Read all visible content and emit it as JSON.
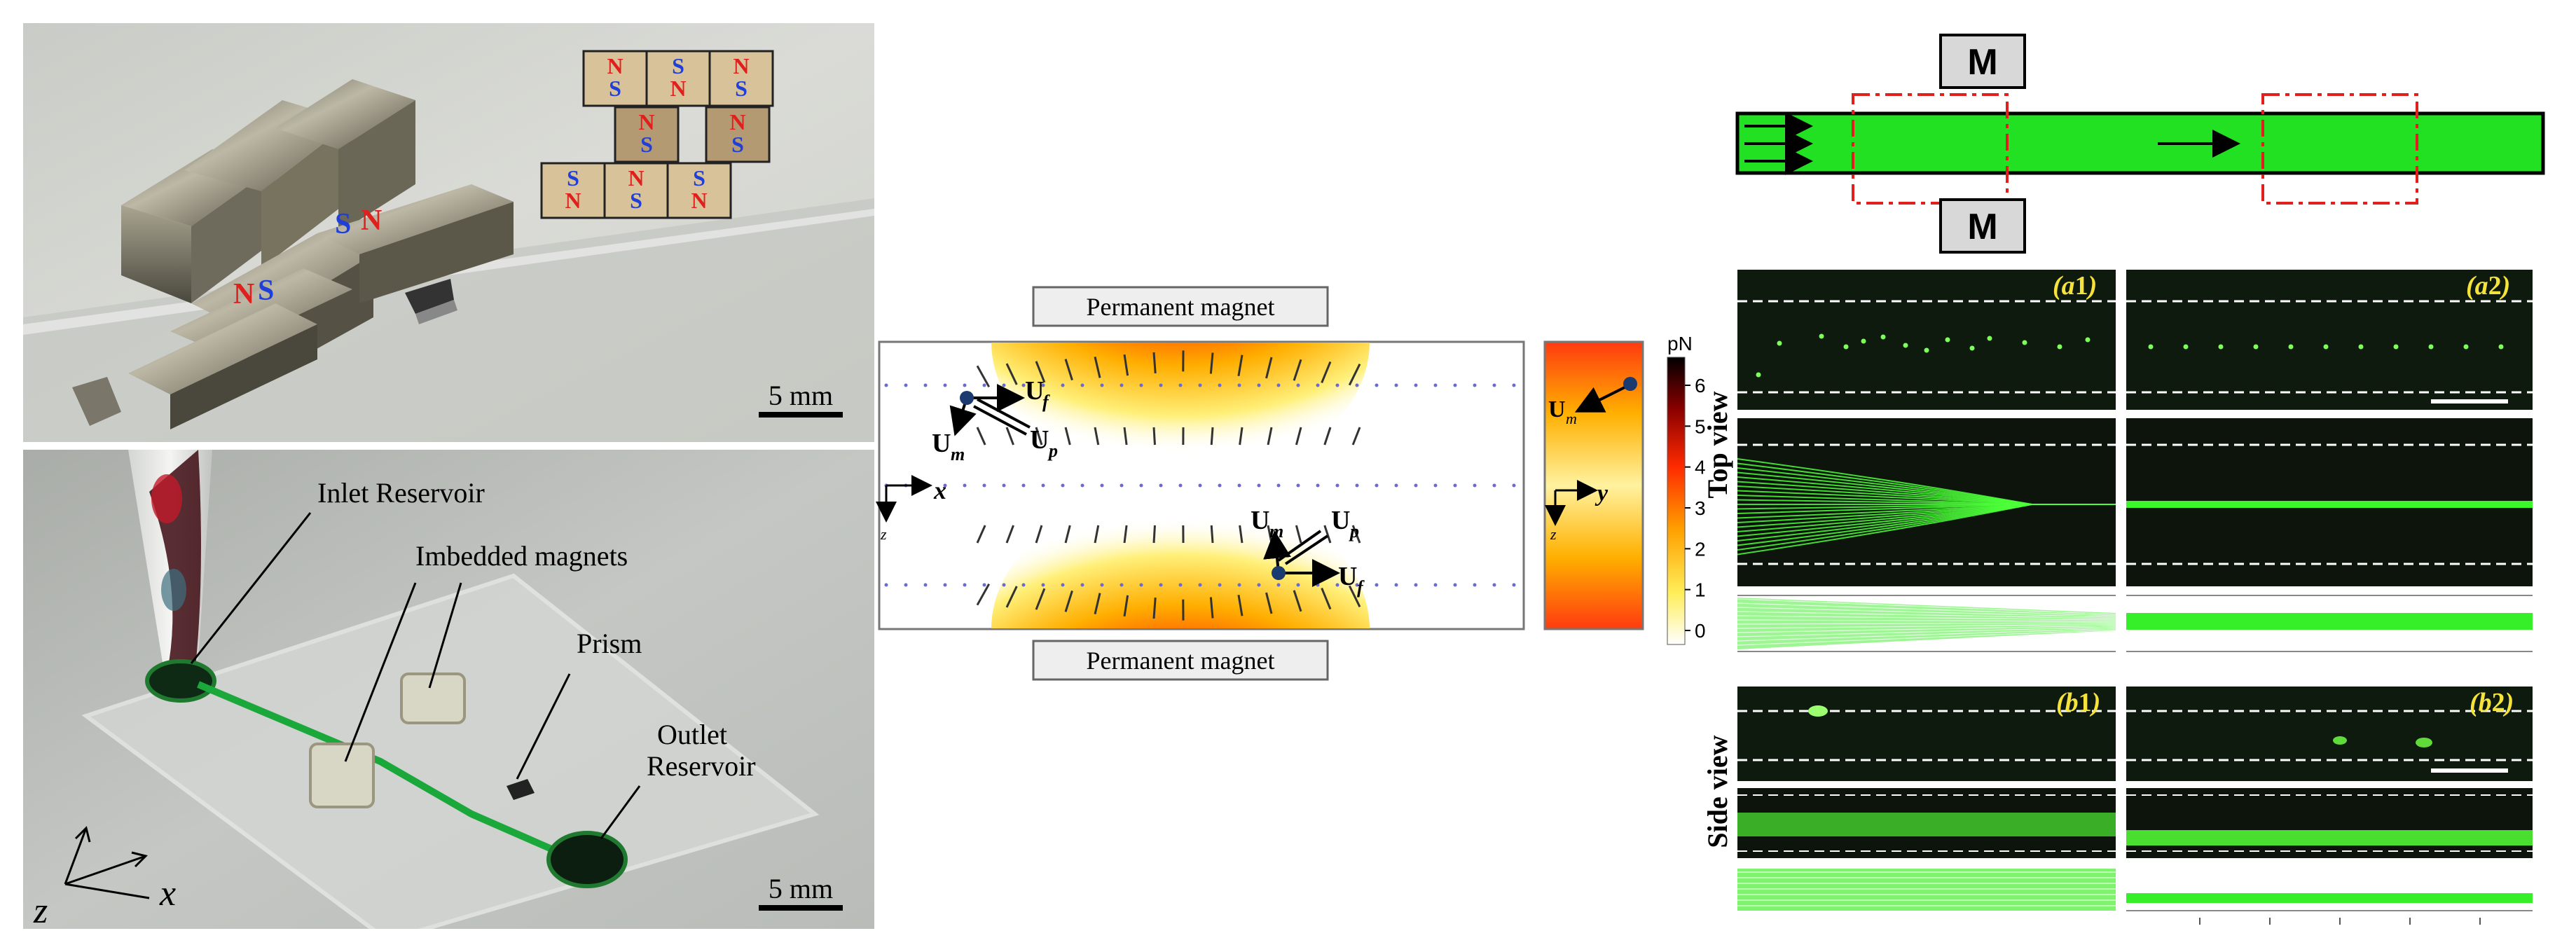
{
  "photo_top": {
    "scale_bar": "5 mm",
    "magnet_diagram": {
      "row1": [
        [
          "N",
          "S"
        ],
        [
          "S",
          "N"
        ],
        [
          "N",
          "S"
        ]
      ],
      "row2": [
        [
          "N",
          "S"
        ],
        [
          "N",
          "S"
        ]
      ],
      "row3": [
        [
          "S",
          "N"
        ],
        [
          "N",
          "S"
        ],
        [
          "S",
          "N"
        ]
      ]
    },
    "block_labels": [
      "S",
      "N",
      "N",
      "S"
    ],
    "colors": {
      "north": "#e0201c",
      "south": "#1f3fd8",
      "block": "#d8c29a",
      "block_dark": "#b39a72"
    }
  },
  "photo_bottom": {
    "scale_bar": "5 mm",
    "labels": {
      "inlet": "Inlet Reservoir",
      "magnets": "Imbedded magnets",
      "prism": "Prism",
      "outlet_1": "Outlet",
      "outlet_2": "Reservoir"
    },
    "axes": {
      "z": "z",
      "x": "x"
    }
  },
  "simulation": {
    "magnet_top": "Permanent magnet",
    "magnet_bottom": "Permanent magnet",
    "axis_x": "x",
    "axis_z": "z",
    "axis_y": "y",
    "vectors": {
      "Uf": "U",
      "Uf_sub": "f",
      "Um": "U",
      "Um_sub": "m",
      "Up": "U",
      "Up_sub": "p"
    },
    "colorbar": {
      "unit": "pN",
      "ticks": [
        "6",
        "5",
        "4",
        "3",
        "2",
        "1",
        "0"
      ],
      "colors": [
        "#000000",
        "#7a0000",
        "#e01010",
        "#ff6a00",
        "#ffb800",
        "#ffee40",
        "#ffffff"
      ]
    }
  },
  "channel": {
    "magnet_label_top": "M",
    "magnet_label_bottom": "M",
    "fluid_color": "#22e022"
  },
  "results": {
    "side_label_top": "Top view",
    "side_label_bottom": "Side view",
    "panel_labels": {
      "a1": "a",
      "a1_num": "1",
      "a2": "a",
      "a2_num": "2",
      "b1": "b",
      "b1_num": "1",
      "b2": "b",
      "b2_num": "2"
    }
  }
}
